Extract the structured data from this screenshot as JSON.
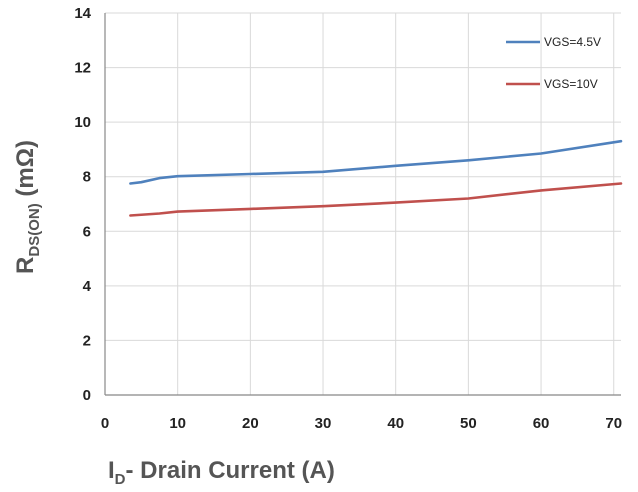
{
  "chart_data": {
    "type": "line",
    "xlabel": {
      "main": "I",
      "sub": "D",
      "rest": "- Drain Current (A)"
    },
    "ylabel": {
      "main": "R",
      "sub": "DS(ON)",
      "rest": " (mΩ)"
    },
    "xlim": [
      0,
      71
    ],
    "ylim": [
      0,
      14
    ],
    "xticks": [
      0,
      10,
      20,
      30,
      40,
      50,
      60,
      70
    ],
    "yticks": [
      0,
      2,
      4,
      6,
      8,
      10,
      12,
      14
    ],
    "grid": true,
    "legend_position": "top-right",
    "series": [
      {
        "name": "VGS=4.5V",
        "color": "#4f81bd",
        "points": [
          [
            3.5,
            7.75
          ],
          [
            5,
            7.8
          ],
          [
            7.5,
            7.95
          ],
          [
            10,
            8.02
          ],
          [
            20,
            8.1
          ],
          [
            30,
            8.18
          ],
          [
            40,
            8.4
          ],
          [
            50,
            8.6
          ],
          [
            60,
            8.85
          ],
          [
            71,
            9.3
          ]
        ]
      },
      {
        "name": "VGS=10V",
        "color": "#c0504d",
        "points": [
          [
            3.5,
            6.58
          ],
          [
            7.5,
            6.65
          ],
          [
            10,
            6.72
          ],
          [
            20,
            6.82
          ],
          [
            30,
            6.92
          ],
          [
            40,
            7.05
          ],
          [
            50,
            7.2
          ],
          [
            60,
            7.5
          ],
          [
            71,
            7.75
          ]
        ]
      }
    ]
  }
}
